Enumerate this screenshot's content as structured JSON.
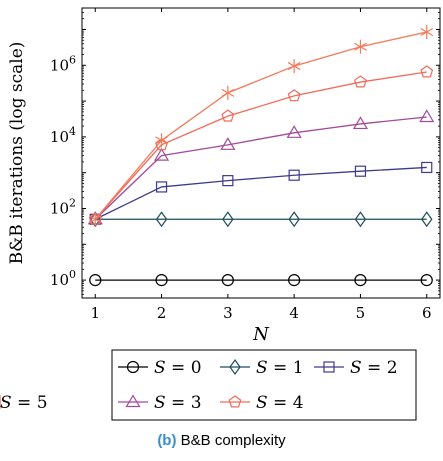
{
  "chart_data": {
    "type": "line",
    "ylabel": "B&B iterations (log scale)",
    "xlabel": "N",
    "x": [
      1,
      2,
      3,
      4,
      5,
      6
    ],
    "xlim": [
      0.8,
      6.2
    ],
    "ylim_log10": [
      -0.5,
      7.6
    ],
    "yscale": "log",
    "yticks": [
      {
        "exp": 0,
        "base": "10",
        "sup": "0"
      },
      {
        "exp": 2,
        "base": "10",
        "sup": "2"
      },
      {
        "exp": 4,
        "base": "10",
        "sup": "4"
      },
      {
        "exp": 6,
        "base": "10",
        "sup": "6"
      }
    ],
    "xticks": [
      "1",
      "2",
      "3",
      "4",
      "5",
      "6"
    ],
    "grid": false,
    "legend_position": "bottom",
    "series": [
      {
        "name": "S = 0",
        "label_var": "S",
        "label_val": "0",
        "color": "#000000",
        "marker": "circle",
        "values": [
          1,
          1,
          1,
          1,
          1,
          1
        ]
      },
      {
        "name": "S = 1",
        "label_var": "S",
        "label_val": "1",
        "color": "#1d4e5c",
        "marker": "diamond",
        "values": [
          50,
          50,
          50,
          50,
          50,
          50
        ]
      },
      {
        "name": "S = 2",
        "label_var": "S",
        "label_val": "2",
        "color": "#3d3a8f",
        "marker": "square",
        "values": [
          50,
          400,
          600,
          850,
          1100,
          1400
        ]
      },
      {
        "name": "S = 3",
        "label_var": "S",
        "label_val": "3",
        "color": "#a24a9a",
        "marker": "triangle",
        "values": [
          50,
          3000,
          6000,
          13000,
          23000,
          36000
        ]
      },
      {
        "name": "S = 4",
        "label_var": "S",
        "label_val": "4",
        "color": "#f26a5a",
        "marker": "pentagon",
        "values": [
          50,
          6000,
          38000,
          140000,
          340000,
          650000
        ]
      },
      {
        "name": "S = 5",
        "label_var": "S",
        "label_val": "5",
        "color": "#f47a5a",
        "marker": "star",
        "values": [
          50,
          8000,
          170000,
          950000,
          3300000,
          8500000
        ]
      }
    ]
  },
  "caption": {
    "tag": "(b)",
    "text": "B&B complexity"
  }
}
